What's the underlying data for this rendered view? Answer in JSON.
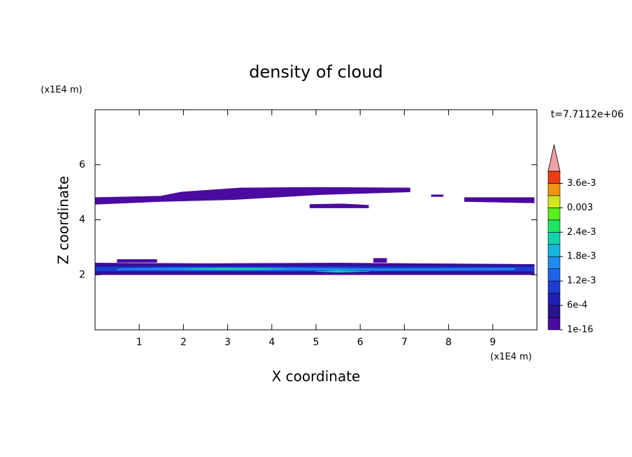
{
  "chart_data": {
    "type": "contour",
    "title": "density of cloud",
    "x_label": "X coordinate",
    "y_label": "Z coordinate",
    "x_unit": "(x1E4 m)",
    "y_unit": "(x1E4 m)",
    "annotation": "t=7.7112e+06",
    "xlim": [
      0,
      10
    ],
    "ylim": [
      0,
      8
    ],
    "xticks": [
      1,
      2,
      3,
      4,
      5,
      6,
      7,
      8,
      9
    ],
    "yticks": [
      2,
      4,
      6
    ],
    "levels": [
      1e-16,
      0.0003,
      0.0006,
      0.0009,
      0.0012,
      0.0015,
      0.0018,
      0.0021,
      0.0024,
      0.0027,
      0.003,
      0.0033,
      0.0036,
      0.0039
    ],
    "colors": [
      "#4b0aa0",
      "#28148c",
      "#1e1eb4",
      "#1e3cd2",
      "#1e64eb",
      "#1e8cf0",
      "#14b4dc",
      "#14d2aa",
      "#1ee664",
      "#5af01e",
      "#d2e61e",
      "#f09614",
      "#eb3c14"
    ],
    "over_color": "#f0a0a0",
    "colorbar_ticks": [
      {
        "value": 1e-16,
        "label": "1e-16"
      },
      {
        "value": 0.0006,
        "label": "6e-4"
      },
      {
        "value": 0.0012,
        "label": "1.2e-3"
      },
      {
        "value": 0.0018,
        "label": "1.8e-3"
      },
      {
        "value": 0.0024,
        "label": "2.4e-3"
      },
      0.003,
      {
        "value": 0.0036,
        "label": "3.6e-3"
      }
    ],
    "regions": [
      {
        "level": 1e-16,
        "x": [
          0,
          1.48,
          1.95,
          3.29,
          5.0,
          7.13,
          7.13,
          5.09,
          3.14,
          1.48,
          0
        ],
        "z": [
          4.81,
          4.86,
          5.01,
          5.16,
          5.18,
          5.16,
          5.01,
          4.91,
          4.73,
          4.66,
          4.56
        ]
      },
      {
        "level": 1e-16,
        "x": [
          8.36,
          9.94,
          9.94,
          8.36
        ],
        "z": [
          4.81,
          4.81,
          4.61,
          4.66
        ]
      },
      {
        "level": 1e-16,
        "x": [
          7.61,
          7.88,
          7.88,
          7.61
        ],
        "z": [
          4.91,
          4.91,
          4.84,
          4.84
        ]
      },
      {
        "level": 1e-16,
        "x": [
          4.86,
          5.6,
          6.19,
          6.19,
          4.86
        ],
        "z": [
          4.56,
          4.58,
          4.53,
          4.43,
          4.43
        ]
      },
      {
        "level": 1e-16,
        "x": [
          0,
          2.5,
          5.5,
          9.94,
          9.94,
          0
        ],
        "z": [
          2.43,
          2.41,
          2.43,
          2.38,
          2.0,
          2.0
        ]
      },
      {
        "level": 1e-16,
        "x": [
          0.5,
          1.4,
          1.4,
          0.5
        ],
        "z": [
          2.56,
          2.56,
          2.45,
          2.45
        ]
      },
      {
        "level": 1e-16,
        "x": [
          6.3,
          6.6,
          6.6,
          6.3
        ],
        "z": [
          2.6,
          2.6,
          2.45,
          2.45
        ]
      },
      {
        "level": 0.0003,
        "x": [
          0,
          9.94,
          9.94,
          0
        ],
        "z": [
          2.36,
          2.36,
          2.06,
          2.06
        ]
      },
      {
        "level": 0.0006,
        "x": [
          0,
          9.94,
          9.94,
          0
        ],
        "z": [
          2.32,
          2.32,
          2.1,
          2.1
        ]
      },
      {
        "level": 0.0009,
        "x": [
          0,
          4.5,
          9.94,
          9.94,
          4.5,
          0
        ],
        "z": [
          2.28,
          2.3,
          2.28,
          2.14,
          2.12,
          2.14
        ]
      },
      {
        "level": 0.0015,
        "x": [
          0.5,
          2.0,
          4.5,
          6.5,
          9.5,
          9.5,
          6.5,
          4.5,
          2.0,
          0.5
        ],
        "z": [
          2.22,
          2.26,
          2.25,
          2.22,
          2.24,
          2.18,
          2.16,
          2.17,
          2.17,
          2.18
        ]
      },
      {
        "level": 0.0021,
        "x": [
          2.0,
          2.8,
          3.6,
          4.3,
          3.6,
          2.8
        ],
        "z": [
          2.2,
          2.24,
          2.24,
          2.21,
          2.18,
          2.18
        ]
      },
      {
        "level": 0.0021,
        "x": [
          5.0,
          5.5,
          6.2,
          5.5
        ],
        "z": [
          2.12,
          2.15,
          2.12,
          2.09
        ]
      }
    ]
  }
}
